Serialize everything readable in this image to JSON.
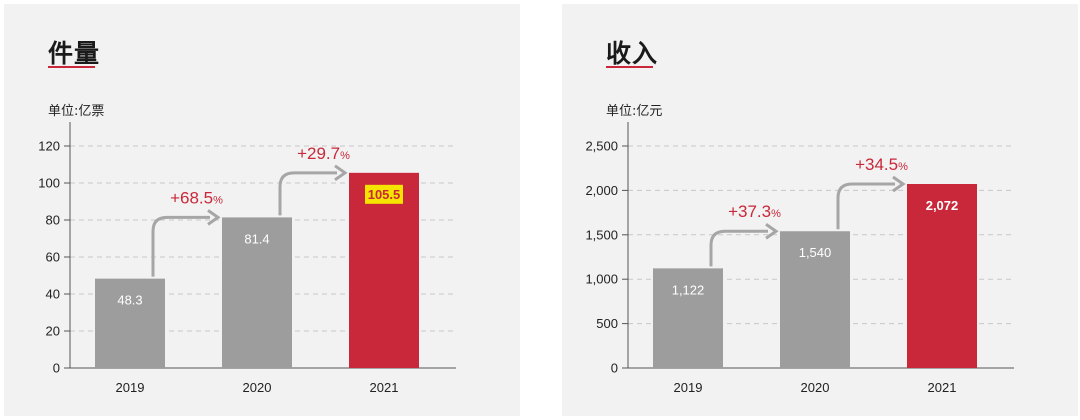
{
  "chart_data": [
    {
      "type": "bar",
      "title": "件量",
      "unit": "单位:亿票",
      "categories": [
        "2019",
        "2020",
        "2021"
      ],
      "values": [
        48.3,
        81.4,
        105.5
      ],
      "value_labels": [
        "48.3",
        "81.4",
        "105.5"
      ],
      "growth": [
        "+68.5",
        "+29.7"
      ],
      "percent_sign": "%",
      "yticks": [
        0,
        20,
        40,
        60,
        80,
        100,
        120
      ],
      "ytick_labels": [
        "0",
        "20",
        "40",
        "60",
        "80",
        "100",
        "120"
      ],
      "ylim": [
        0,
        120
      ],
      "grid": true,
      "colors": [
        "#9d9d9d",
        "#9d9d9d",
        "#c8283a"
      ],
      "highlight_last_label": true
    },
    {
      "type": "bar",
      "title": "收入",
      "unit": "单位:亿元",
      "categories": [
        "2019",
        "2020",
        "2021"
      ],
      "values": [
        1122,
        1540,
        2072
      ],
      "value_labels": [
        "1,122",
        "1,540",
        "2,072"
      ],
      "growth": [
        "+37.3",
        "+34.5"
      ],
      "percent_sign": "%",
      "yticks": [
        0,
        500,
        1000,
        1500,
        2000,
        2500
      ],
      "ytick_labels": [
        "0",
        "500",
        "1,000",
        "1,500",
        "2,000",
        "2,500"
      ],
      "ylim": [
        0,
        2500
      ],
      "grid": true,
      "colors": [
        "#9d9d9d",
        "#9d9d9d",
        "#c8283a"
      ],
      "highlight_last_label": false
    }
  ],
  "colors": {
    "accent": "#c8283a",
    "bar_gray": "#9d9d9d",
    "arrow": "#a6a6a6",
    "highlight": "#f5e400"
  }
}
